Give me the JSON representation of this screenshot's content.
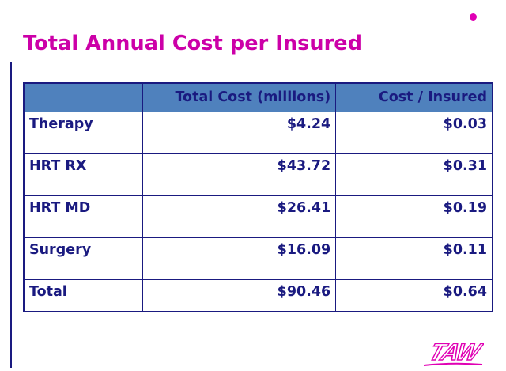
{
  "slide": {
    "title": "Total Annual Cost per Insured"
  },
  "table": {
    "headers": [
      "",
      "Total Cost (millions)",
      "Cost / Insured"
    ],
    "rows": [
      {
        "category": "Therapy",
        "total_cost": "$4.24",
        "cost_per_insured": "$0.03"
      },
      {
        "category": "HRT RX",
        "total_cost": "$43.72",
        "cost_per_insured": "$0.31"
      },
      {
        "category": "HRT MD",
        "total_cost": "$26.41",
        "cost_per_insured": "$0.19"
      },
      {
        "category": "Surgery",
        "total_cost": "$16.09",
        "cost_per_insured": "$0.11"
      },
      {
        "category": "Total",
        "total_cost": "$90.46",
        "cost_per_insured": "$0.64"
      }
    ]
  },
  "logo": {
    "text": "TAW"
  },
  "colors": {
    "title": "#cc00a8",
    "header_fill": "#4f81bd",
    "table_text": "#1a1a80",
    "logo": "#e000b4"
  }
}
